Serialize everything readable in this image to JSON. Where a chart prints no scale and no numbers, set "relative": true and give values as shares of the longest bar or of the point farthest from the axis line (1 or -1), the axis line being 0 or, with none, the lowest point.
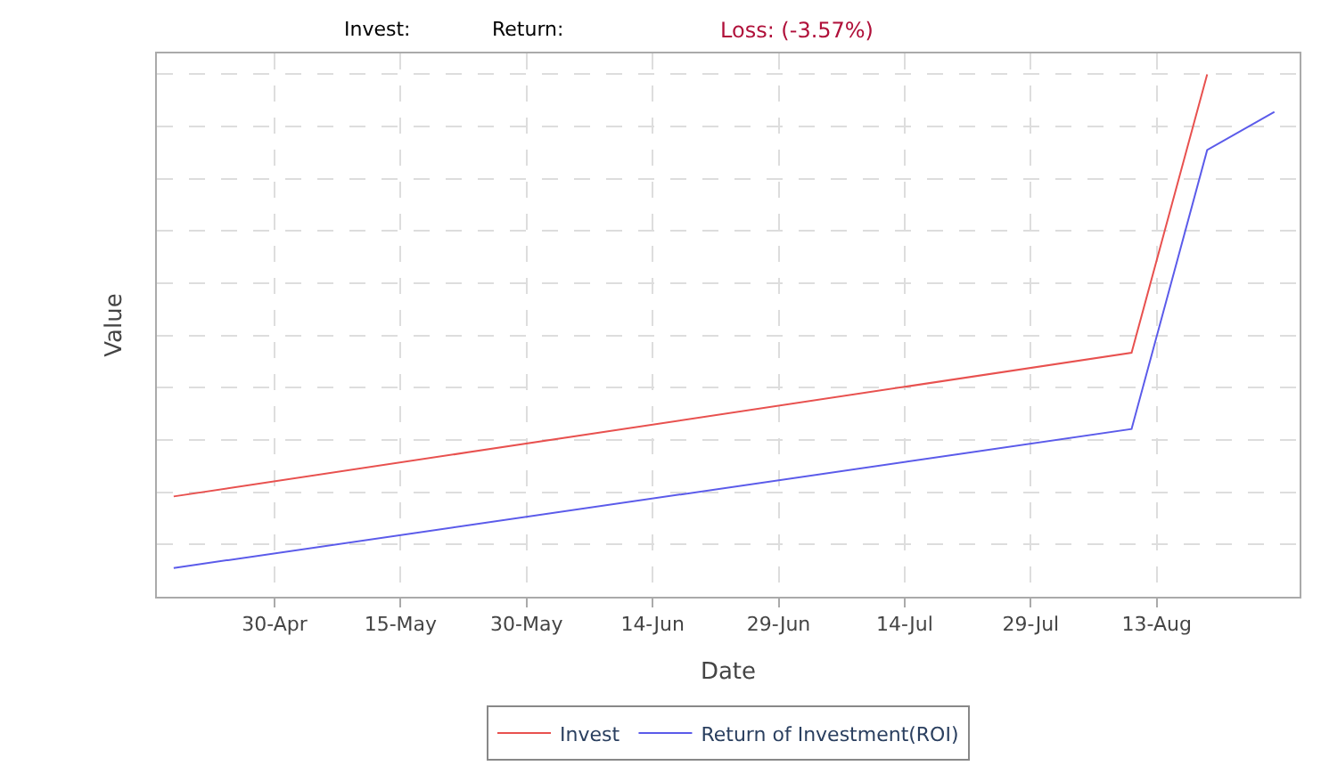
{
  "chart_data": {
    "type": "line",
    "relative": true,
    "annotations": [
      "Invest:",
      "Return:",
      "Loss: (-3.57%)"
    ],
    "xlabel": "Date",
    "ylabel": "Value",
    "xlim": [
      "--04-16",
      "--08-30"
    ],
    "xticks": [
      {
        "value": "--04-30",
        "label": "30-Apr"
      },
      {
        "value": "--05-15",
        "label": "15-May"
      },
      {
        "value": "--05-30",
        "label": "30-May"
      },
      {
        "value": "--06-14",
        "label": "14-Jun"
      },
      {
        "value": "--06-29",
        "label": "29-Jun"
      },
      {
        "value": "--07-14",
        "label": "14-Jul"
      },
      {
        "value": "--07-29",
        "label": "29-Jul"
      },
      {
        "value": "--08-13",
        "label": "13-Aug"
      }
    ],
    "series": [
      {
        "name": "Invest",
        "color": "#e8514f",
        "x": [
          "--04-18",
          "--08-10",
          "--08-19"
        ],
        "values": [
          0.192,
          0.467,
          1.0
        ]
      },
      {
        "name": "Return of Investment(ROI)",
        "color": "#5b5bea",
        "x": [
          "--04-18",
          "--08-10",
          "--08-19",
          "--08-27"
        ],
        "values": [
          0.055,
          0.321,
          0.855,
          0.928
        ]
      }
    ],
    "grid": true,
    "legend": "bottom",
    "line_style": "solid",
    "marker": "none"
  }
}
